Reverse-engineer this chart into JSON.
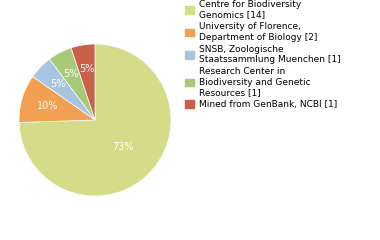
{
  "labels": [
    "Centre for Biodiversity\nGenomics [14]",
    "University of Florence,\nDepartment of Biology [2]",
    "SNSB, Zoologische\nStaatssammlung Muenchen [1]",
    "Research Center in\nBiodiversity and Genetic\nResources [1]",
    "Mined from GenBank, NCBI [1]"
  ],
  "values": [
    73,
    10,
    5,
    5,
    5
  ],
  "colors": [
    "#d4dc8a",
    "#f0a050",
    "#a8c4e0",
    "#a8c87a",
    "#c8604a"
  ],
  "pct_labels": [
    "73%",
    "10%",
    "5%",
    "5%",
    "5%"
  ],
  "startangle": 90,
  "background_color": "#ffffff",
  "text_color": "#ffffff",
  "fontsize": 7.0,
  "legend_fontsize": 6.5
}
